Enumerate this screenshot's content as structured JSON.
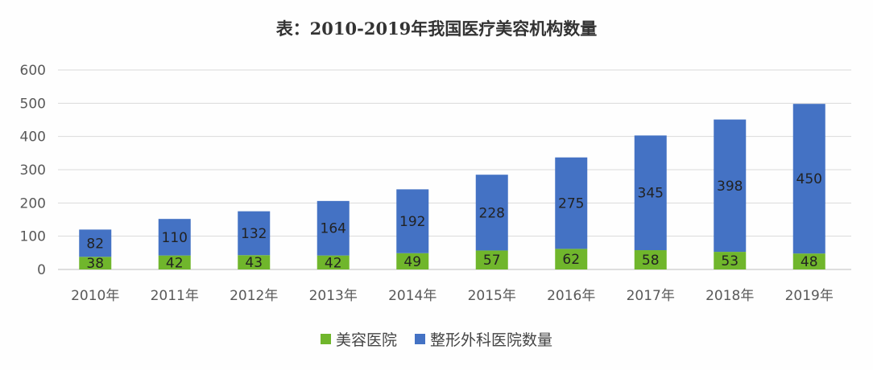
{
  "chart_data": {
    "type": "bar",
    "stacked": true,
    "title": "表：2010-2019年我国医疗美容机构数量",
    "categories": [
      "2010年",
      "2011年",
      "2012年",
      "2013年",
      "2014年",
      "2015年",
      "2016年",
      "2017年",
      "2018年",
      "2019年"
    ],
    "series": [
      {
        "name": "美容医院",
        "color": "#70b62c",
        "values": [
          38,
          42,
          43,
          42,
          49,
          57,
          62,
          58,
          53,
          48
        ]
      },
      {
        "name": "整形外科医院数量",
        "color": "#4472c4",
        "values": [
          82,
          110,
          132,
          164,
          192,
          228,
          275,
          345,
          398,
          450
        ]
      }
    ],
    "ylim": [
      0,
      600
    ],
    "yticks": [
      0,
      100,
      200,
      300,
      400,
      500,
      600
    ],
    "grid": true,
    "legend": "bottom"
  }
}
